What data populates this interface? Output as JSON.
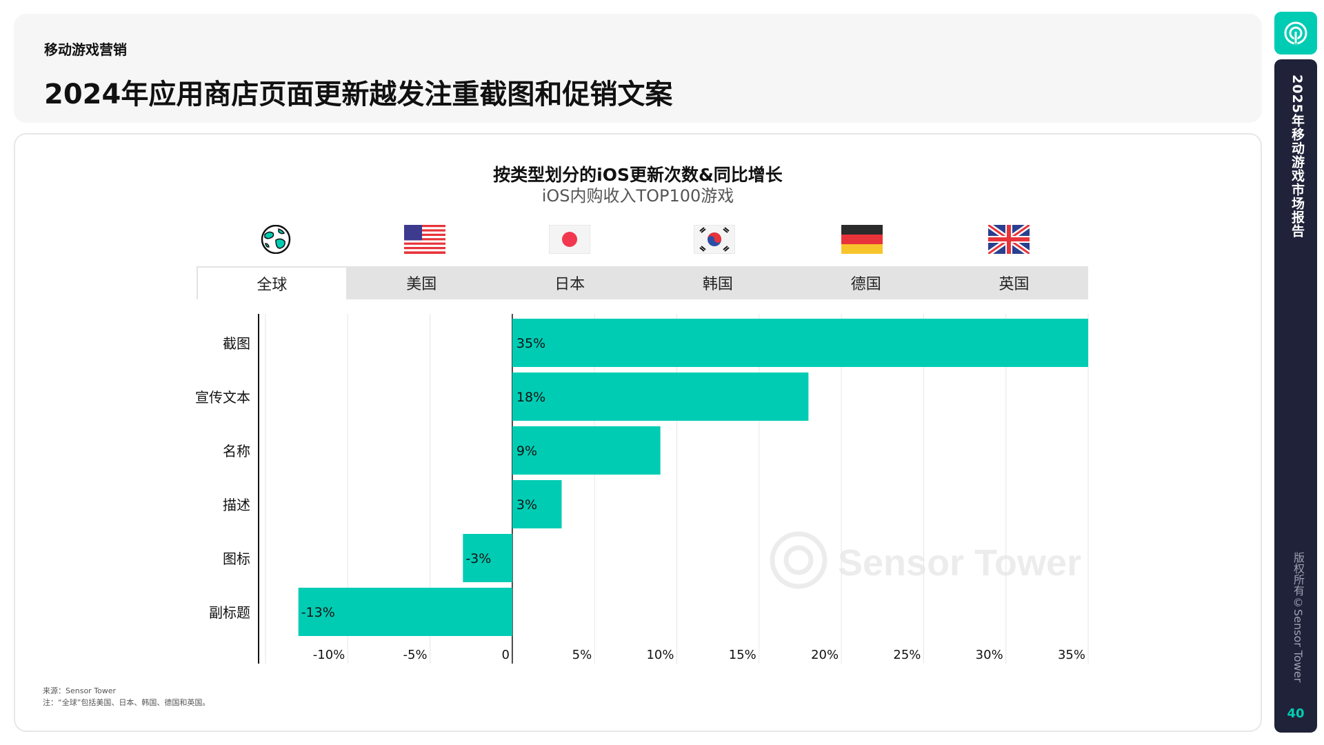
{
  "header": {
    "section_label": "移动游戏营销",
    "title": "2024年应用商店页面更新越发注重截图和促销文案"
  },
  "tabs": [
    {
      "label": "全球",
      "icon": "globe-icon",
      "active": true
    },
    {
      "label": "美国",
      "icon": "us-flag-icon",
      "active": false
    },
    {
      "label": "日本",
      "icon": "japan-flag-icon",
      "active": false
    },
    {
      "label": "韩国",
      "icon": "korea-flag-icon",
      "active": false
    },
    {
      "label": "德国",
      "icon": "germany-flag-icon",
      "active": false
    },
    {
      "label": "英国",
      "icon": "uk-flag-icon",
      "active": false
    }
  ],
  "footnote": {
    "source": "来源：Sensor Tower",
    "note": "注：“全球”包括美国、日本、韩国、德国和英国。"
  },
  "sidebar": {
    "report_title": "2025年移动游戏市场报告",
    "copyright": "版权所有©Sensor Tower",
    "page_number": "40"
  },
  "watermark": "Sensor Tower",
  "colors": {
    "bar": "#00ccb3",
    "accent": "#00ccb3",
    "sidebar_bg": "#1f2238",
    "tab_bg": "#e3e3e3"
  },
  "chart_data": {
    "type": "bar",
    "orientation": "horizontal",
    "title": "按类型划分的iOS更新次数&同比增长",
    "subtitle": "iOS内购收入TOP100游戏",
    "categories": [
      "截图",
      "宣传文本",
      "名称",
      "描述",
      "图标",
      "副标题"
    ],
    "values": [
      35,
      18,
      9,
      3,
      -3,
      -13
    ],
    "data_labels": [
      "35%",
      "18%",
      "9%",
      "3%",
      "-3%",
      "-13%"
    ],
    "xlim": [
      -15,
      35
    ],
    "xticks": [
      -10,
      -5,
      0,
      5,
      10,
      15,
      20,
      25,
      30,
      35
    ],
    "xtick_labels": [
      "-10%",
      "-5%",
      "0",
      "5%",
      "10%",
      "15%",
      "20%",
      "25%",
      "30%",
      "35%"
    ],
    "grid": "vertical",
    "legend": "none"
  }
}
